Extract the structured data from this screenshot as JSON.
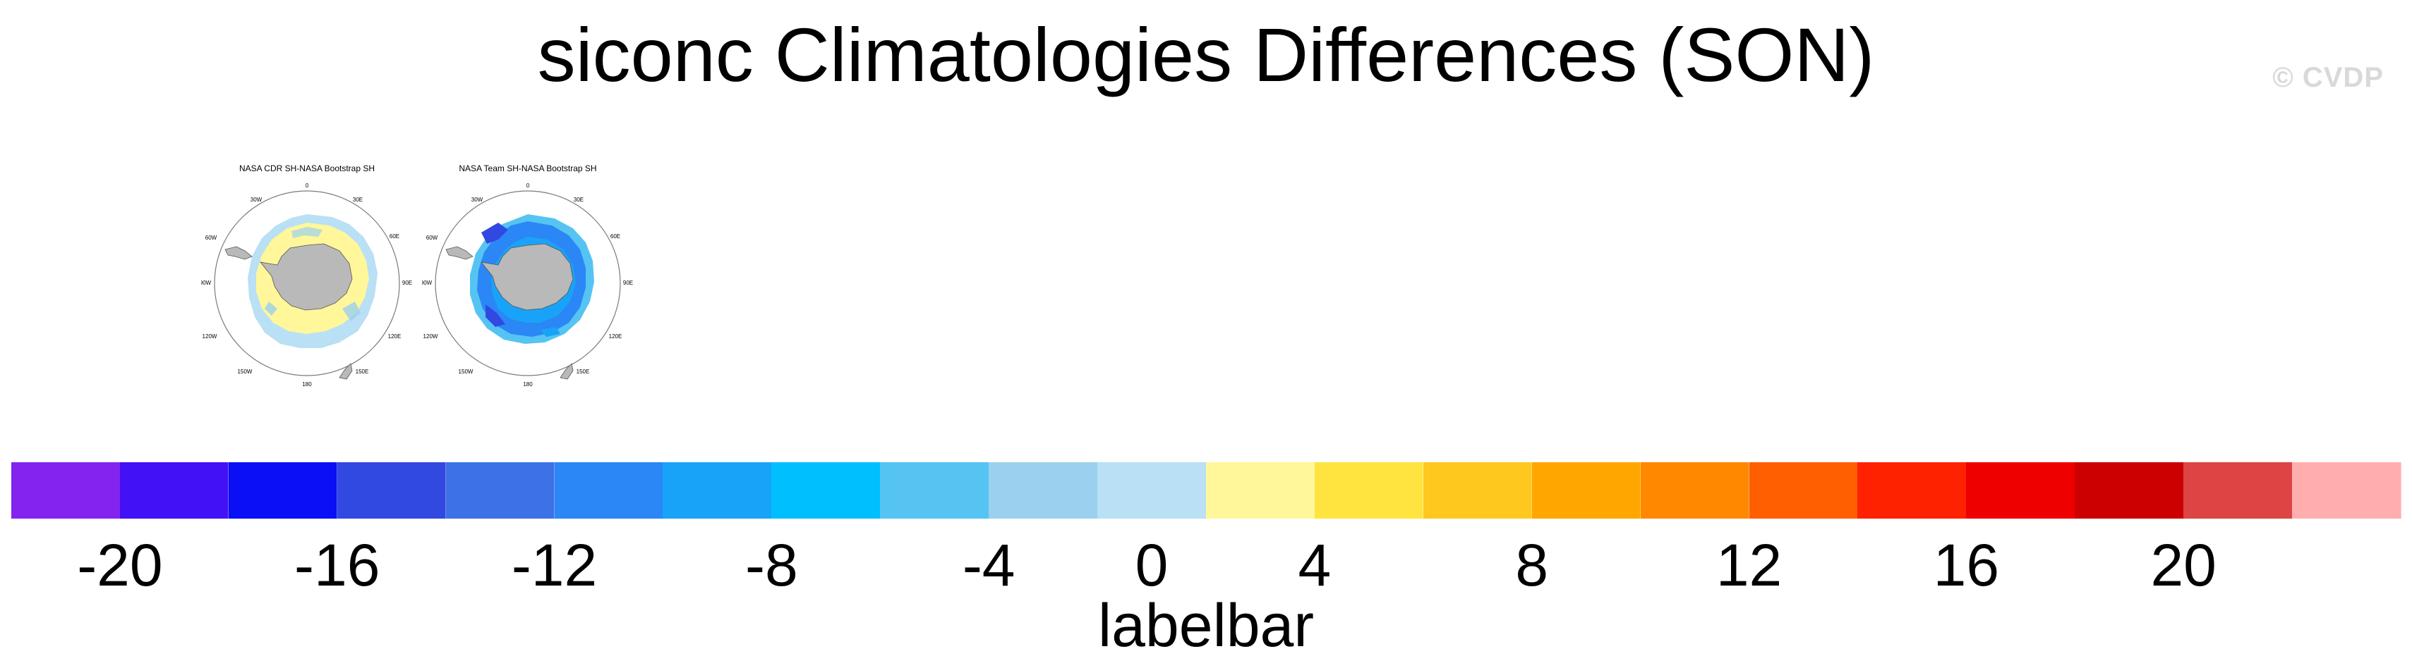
{
  "page": {
    "title": "siconc Climatologies Differences (SON)",
    "watermark": "© CVDP"
  },
  "panels": [
    {
      "title": "NASA CDR SH-NASA Bootstrap SH",
      "lon_labels": [
        "0",
        "30E",
        "60E",
        "90E",
        "120E",
        "150E",
        "180",
        "150W",
        "120W",
        "90W",
        "60W",
        "30W"
      ],
      "icon": "antarctic-polar-map-icon",
      "pattern": "mostly-positive"
    },
    {
      "title": "NASA Team SH-NASA Bootstrap SH",
      "lon_labels": [
        "0",
        "30E",
        "60E",
        "90E",
        "120E",
        "150E",
        "180",
        "150W",
        "120W",
        "90W",
        "60W",
        "30W"
      ],
      "icon": "antarctic-polar-map-icon",
      "pattern": "mostly-negative"
    }
  ],
  "chart_data": {
    "type": "heatmap",
    "title": "siconc Climatologies Differences (SON)",
    "colorbar": {
      "label": "labelbar",
      "bounds": [
        -22,
        -20,
        -18,
        -16,
        -14,
        -12,
        -10,
        -8,
        -6,
        -4,
        -2,
        2,
        4,
        6,
        8,
        10,
        12,
        14,
        16,
        18,
        20,
        22
      ],
      "ticks": [
        "-20",
        "-16",
        "-12",
        "-8",
        "-4",
        "0",
        "4",
        "8",
        "12",
        "16",
        "20"
      ],
      "colors": [
        "#8422EE",
        "#4311F5",
        "#0A0FF5",
        "#3149E0",
        "#3C72E5",
        "#2A87F5",
        "#19A3F8",
        "#00BFFF",
        "#55C4F2",
        "#9BD0EE",
        "#B9E0F4",
        "#FFF79A",
        "#FFE440",
        "#FFC81E",
        "#FFA600",
        "#FF8800",
        "#FF5F00",
        "#FF2200",
        "#EE0000",
        "#CC0000",
        "#DD4444",
        "#FFAEAE"
      ]
    },
    "legend_position": "bottom",
    "grid": false
  }
}
